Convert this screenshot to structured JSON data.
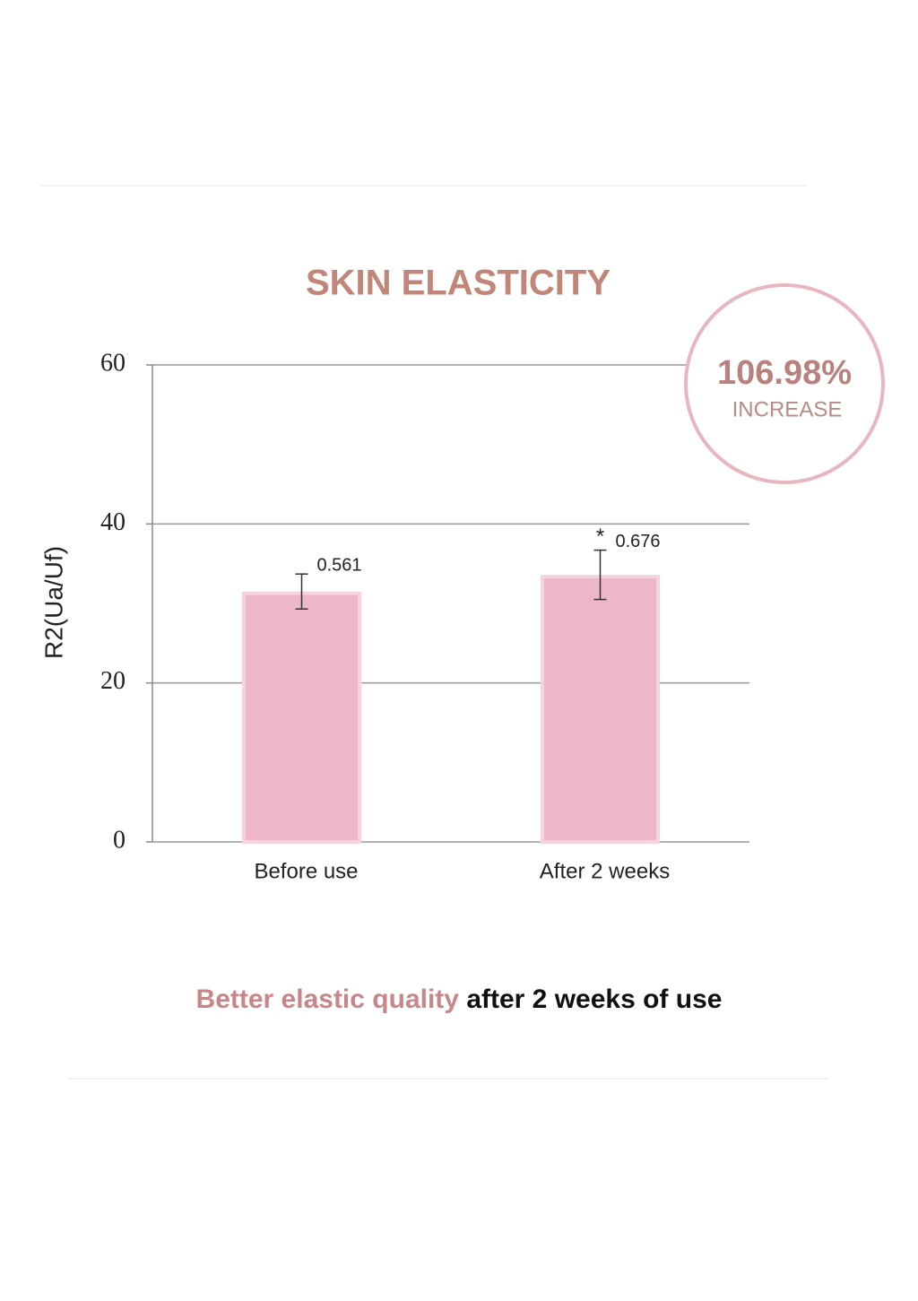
{
  "chart_data": {
    "type": "bar",
    "title": "SKIN ELASTICITY",
    "y_label": "R2(Ua/Uf)",
    "categories": [
      "Before use",
      "After 2 weeks"
    ],
    "values": [
      31.5,
      33.6
    ],
    "errors": [
      2.2,
      3.1
    ],
    "annotations": [
      "0.561",
      "0.676"
    ],
    "significance": "*",
    "color": "#eeb6c9",
    "ylim": [
      0,
      60
    ],
    "yticks": [
      0,
      20,
      40,
      60
    ],
    "grid": true,
    "badge": {
      "value": "106.98%",
      "label": "INCREASE"
    },
    "caption": {
      "highlight": "Better elastic quality",
      "rest": "after 2 weeks of use"
    }
  }
}
